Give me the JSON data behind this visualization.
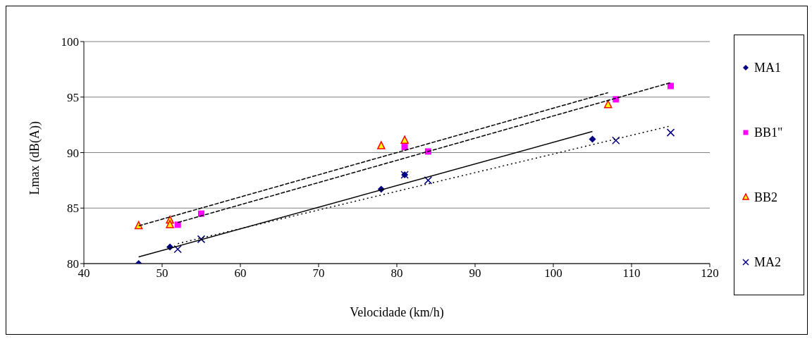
{
  "chart_data": {
    "type": "scatter",
    "xlabel": "Velocidade (km/h)",
    "ylabel": "Lmax (dB(A))",
    "xlim": [
      40,
      120
    ],
    "xticks": [
      40,
      50,
      60,
      70,
      80,
      90,
      100,
      110,
      120
    ],
    "ylim": [
      80,
      100
    ],
    "yticks": [
      80,
      85,
      90,
      95,
      100
    ],
    "grid": "y",
    "legend": "right",
    "series": [
      {
        "name": "MA1",
        "color": "#000080",
        "marker": "diamond",
        "x": [
          47,
          51,
          78,
          81,
          105
        ],
        "values": [
          80,
          81.5,
          86.7,
          88,
          91.2
        ]
      },
      {
        "name": "BB1\"",
        "color": "#ff00ff",
        "marker": "square",
        "x": [
          52,
          55,
          81,
          84,
          108,
          115
        ],
        "values": [
          83.5,
          84.5,
          90.5,
          90.1,
          94.8,
          96
        ]
      },
      {
        "name": "BB2",
        "color": "#ffff00",
        "marker": "triangle",
        "x": [
          47,
          51,
          51,
          78,
          81,
          107
        ],
        "values": [
          83.4,
          83.9,
          83.5,
          90.6,
          91.1,
          94.3
        ]
      },
      {
        "name": "MA2",
        "color": "#000080",
        "marker": "cross",
        "x": [
          52,
          55,
          81,
          84,
          108,
          115
        ],
        "values": [
          81.3,
          82.2,
          88,
          87.5,
          91.1,
          91.8
        ]
      },
      {
        "type": "line",
        "color": "#000000",
        "line_style": "solid",
        "marker": "none",
        "x": [
          47,
          105
        ],
        "values": [
          80.6,
          91.9
        ]
      },
      {
        "type": "line",
        "color": "#000000",
        "line_style": "dashed",
        "marker": "none",
        "x": [
          52,
          115
        ],
        "values": [
          83.7,
          96.3
        ]
      },
      {
        "type": "line",
        "color": "#000000",
        "line_style": "dashed",
        "marker": "none",
        "x": [
          47,
          107
        ],
        "values": [
          83.4,
          95.4
        ]
      },
      {
        "type": "line",
        "color": "#000000",
        "line_style": "dotted",
        "marker": "none",
        "x": [
          52,
          115
        ],
        "values": [
          81.8,
          92.4
        ]
      }
    ]
  }
}
